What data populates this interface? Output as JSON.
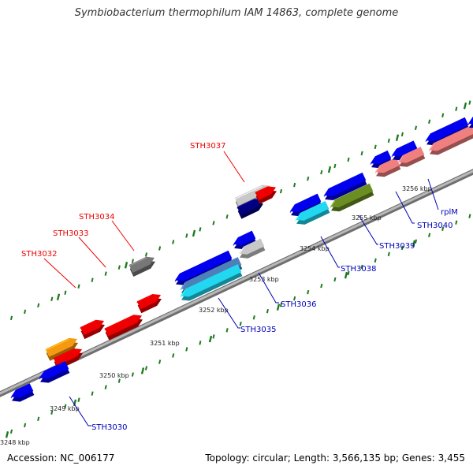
{
  "header": {
    "title": "Symbiobacterium thermophilum IAM 14863, complete genome"
  },
  "footer": {
    "accession": "Accession: NC_006177",
    "summary": "Topology: circular; Length: 3,566,135 bp; Genes: 3,455"
  },
  "scale": {
    "ticks": [
      "3248 kbp",
      "3249 kbp",
      "3250 kbp",
      "3251 kbp",
      "3252 kbp",
      "3253 kbp",
      "3254 kbp",
      "3255 kbp",
      "3256 kbp"
    ]
  },
  "forward_genes": [
    {
      "label": "STH3032",
      "color": "#ee0000"
    },
    {
      "label": "STH3033",
      "color": "#ee0000"
    },
    {
      "label": "STH3034",
      "color": "#ee0000"
    },
    {
      "label": "STH3037",
      "color": "#ee0000"
    }
  ],
  "reverse_genes": [
    {
      "label": "STH3030",
      "color": "#0000bb"
    },
    {
      "label": "STH3035",
      "color": "#0000bb"
    },
    {
      "label": "STH3036",
      "color": "#0000bb"
    },
    {
      "label": "STH3038",
      "color": "#0000bb"
    },
    {
      "label": "STH3039",
      "color": "#0000bb"
    },
    {
      "label": "STH3040",
      "color": "#0000bb"
    },
    {
      "label": "rplM",
      "color": "#0000bb"
    }
  ],
  "colors": {
    "backbone": "#8a8a8a",
    "tick_dots": "#1e7a1e",
    "red": "#ee0000",
    "blue": "#0000ee",
    "gray": "#777777",
    "lightgray": "#c8c8c8",
    "navy": "#000080",
    "orange": "#f59a10",
    "cyan": "#22d8f0",
    "steel": "#4d7fb8",
    "olive": "#6b8e23",
    "salmon": "#f08080"
  }
}
